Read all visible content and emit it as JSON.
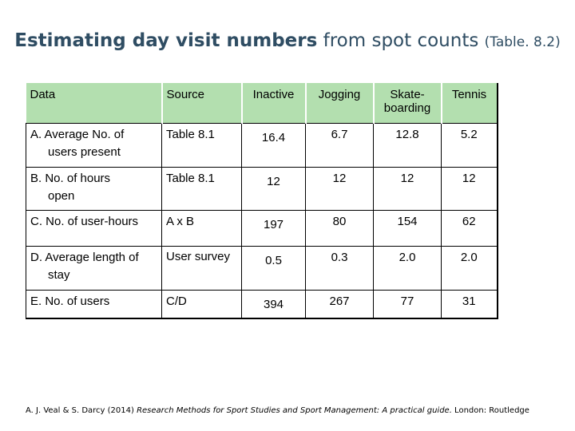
{
  "title": {
    "bold": "Estimating day visit numbers",
    "normal": " from spot counts ",
    "small": "(Table. 8.2)"
  },
  "table": {
    "headers": [
      "Data",
      "Source",
      "Inactive",
      "Jogging",
      "Skate-\nboarding",
      "Tennis"
    ],
    "rows": [
      {
        "label1": "A.  Average No. of",
        "label2": "users present",
        "source": "Table 8.1",
        "values": [
          "16.4",
          "6.7",
          "12.8",
          "5.2"
        ]
      },
      {
        "label1": "B. No. of hours",
        "label2": "open",
        "source": "Table 8.1",
        "values": [
          "12",
          "12",
          "12",
          "12"
        ]
      },
      {
        "label1": "C. No. of user-hours",
        "label2": "",
        "source": "A x B",
        "values": [
          "197",
          "80",
          "154",
          "62"
        ]
      },
      {
        "label1": "D. Average length of",
        "label2": "stay",
        "source": "User survey",
        "values": [
          "0.5",
          "0.3",
          "2.0",
          "2.0"
        ]
      },
      {
        "label1": "E. No. of users",
        "label2": "",
        "source": "C/D",
        "values": [
          "394",
          "267",
          "77",
          "31"
        ]
      }
    ]
  },
  "citation": {
    "authors": "A. J. Veal & S. Darcy (2014) ",
    "work": "Research Methods for Sport Studies and Sport Management: A practical guide.",
    "publisher": " London: Routledge"
  }
}
